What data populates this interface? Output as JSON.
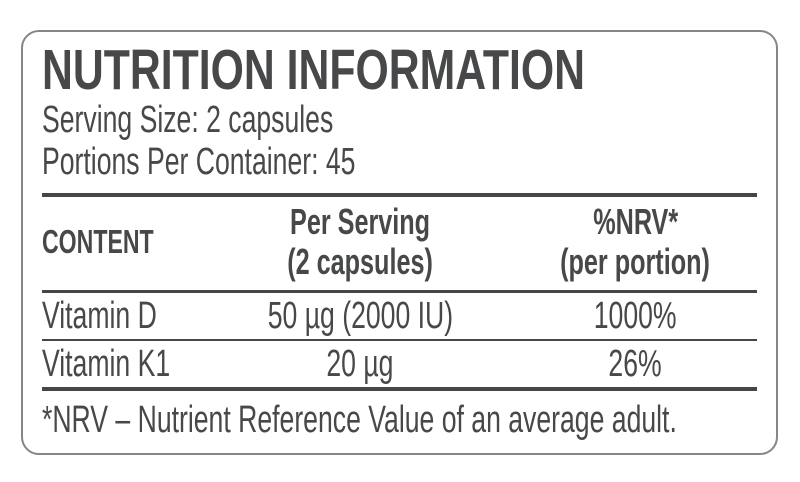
{
  "label": {
    "title": "NUTRITION INFORMATION",
    "serving_size": "Serving Size: 2 capsules",
    "portions_per_container": "Portions Per Container: 45",
    "table": {
      "columns": [
        {
          "line1": "CONTENT",
          "line2": ""
        },
        {
          "line1": "Per Serving",
          "line2": "(2 capsules)"
        },
        {
          "line1": "%NRV*",
          "line2": "(per portion)"
        }
      ],
      "rows": [
        {
          "content": "Vitamin D",
          "per_serving": "50 µg (2000 IU)",
          "nrv_percent": "1000%"
        },
        {
          "content": "Vitamin K1",
          "per_serving": "20 µg",
          "nrv_percent": "26%"
        }
      ]
    },
    "footnote": "*NRV – Nutrient Reference Value of an average adult.",
    "colors": {
      "text": "#47484a",
      "rule": "#454649",
      "border": "#85868a",
      "background": "#ffffff"
    }
  }
}
